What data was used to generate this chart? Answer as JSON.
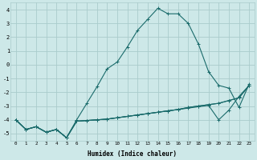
{
  "xlabel": "Humidex (Indice chaleur)",
  "bg_color": "#cde8e8",
  "grid_color": "#aacccc",
  "line_color": "#1a6b6b",
  "xlim": [
    -0.5,
    23.5
  ],
  "ylim": [
    -5.5,
    4.5
  ],
  "xticks": [
    0,
    1,
    2,
    3,
    4,
    5,
    6,
    7,
    8,
    9,
    10,
    11,
    12,
    13,
    14,
    15,
    16,
    17,
    18,
    19,
    20,
    21,
    22,
    23
  ],
  "yticks": [
    -5,
    -4,
    -3,
    -2,
    -1,
    0,
    1,
    2,
    3,
    4
  ],
  "lines": [
    {
      "x": [
        0,
        1,
        2,
        3,
        4,
        5,
        6,
        7,
        8,
        9,
        10,
        11,
        12,
        13,
        14,
        15,
        16,
        17,
        18,
        19,
        20,
        21,
        22,
        23
      ],
      "y": [
        -4.0,
        -4.7,
        -4.5,
        -4.9,
        -4.7,
        -5.3,
        -4.0,
        -2.8,
        -1.6,
        -0.3,
        0.2,
        1.3,
        2.5,
        3.3,
        4.1,
        3.7,
        3.7,
        3.0,
        1.5,
        -0.5,
        -1.5,
        -1.7,
        -3.1,
        -1.4
      ]
    },
    {
      "x": [
        0,
        1,
        2,
        3,
        4,
        5,
        6,
        7,
        8,
        9,
        10,
        11,
        12,
        13,
        14,
        15,
        16,
        17,
        18,
        19,
        20,
        21,
        22,
        23
      ],
      "y": [
        -4.0,
        -4.7,
        -4.5,
        -4.9,
        -4.7,
        -5.3,
        -4.1,
        -4.05,
        -4.0,
        -3.95,
        -3.85,
        -3.75,
        -3.65,
        -3.55,
        -3.45,
        -3.35,
        -3.25,
        -3.15,
        -3.05,
        -2.95,
        -4.0,
        -3.3,
        -2.3,
        -1.5
      ]
    },
    {
      "x": [
        0,
        1,
        2,
        3,
        4,
        5,
        6,
        7,
        8,
        9,
        10,
        11,
        12,
        13,
        14,
        15,
        16,
        17,
        18,
        19,
        20,
        21,
        22,
        23
      ],
      "y": [
        -4.0,
        -4.7,
        -4.5,
        -4.9,
        -4.7,
        -5.3,
        -4.1,
        -4.05,
        -4.0,
        -3.95,
        -3.85,
        -3.75,
        -3.65,
        -3.55,
        -3.45,
        -3.35,
        -3.25,
        -3.1,
        -3.0,
        -2.9,
        -2.8,
        -2.6,
        -2.4,
        -1.5
      ]
    },
    {
      "x": [
        0,
        1,
        2,
        3,
        4,
        5,
        6,
        7,
        8,
        9,
        10,
        11,
        12,
        13,
        14,
        15,
        16,
        17,
        18,
        19,
        20,
        21,
        22,
        23
      ],
      "y": [
        -4.0,
        -4.7,
        -4.5,
        -4.9,
        -4.7,
        -5.3,
        -4.1,
        -4.05,
        -4.0,
        -3.95,
        -3.85,
        -3.75,
        -3.65,
        -3.55,
        -3.45,
        -3.35,
        -3.25,
        -3.1,
        -3.0,
        -2.9,
        -2.8,
        -2.6,
        -2.4,
        -1.5
      ]
    }
  ]
}
